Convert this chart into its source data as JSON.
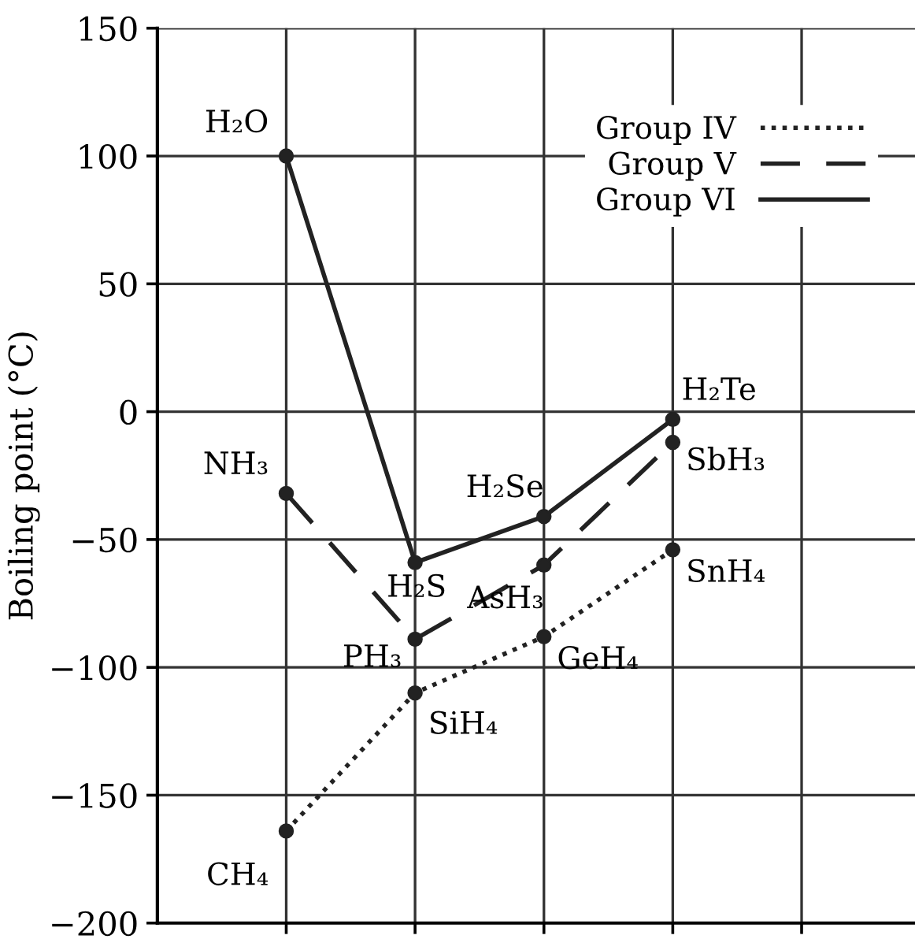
{
  "chart_data": {
    "type": "line",
    "ylabel": "Boiling point (°C)",
    "categories": [
      null,
      null,
      null,
      null,
      null
    ],
    "series": [
      {
        "name": "Group IV",
        "color": "#222222",
        "line_style": "dotted",
        "values": [
          -164,
          -110,
          -88,
          -54,
          null
        ]
      },
      {
        "name": "Group V",
        "color": "#222222",
        "line_style": "dashed",
        "values": [
          -32,
          -89,
          -60,
          -12,
          null
        ]
      },
      {
        "name": "Group VI",
        "color": "#222222",
        "line_style": "solid",
        "values": [
          100,
          -59,
          -41,
          -3,
          null
        ]
      }
    ],
    "ylim": [
      -200,
      150
    ],
    "yticks": [
      -200,
      -150,
      -100,
      -50,
      0,
      50,
      100,
      150
    ],
    "grid": true,
    "legend": "top right",
    "marker": "circle",
    "annotations": [
      "CH₄",
      "SiH₄",
      "GeH₄",
      "SnH₄",
      "NH₃",
      "PH₃",
      "AsH₃",
      "SbH₃",
      "H₂O",
      "H₂S",
      "H₂Se",
      "H₂Te"
    ]
  }
}
